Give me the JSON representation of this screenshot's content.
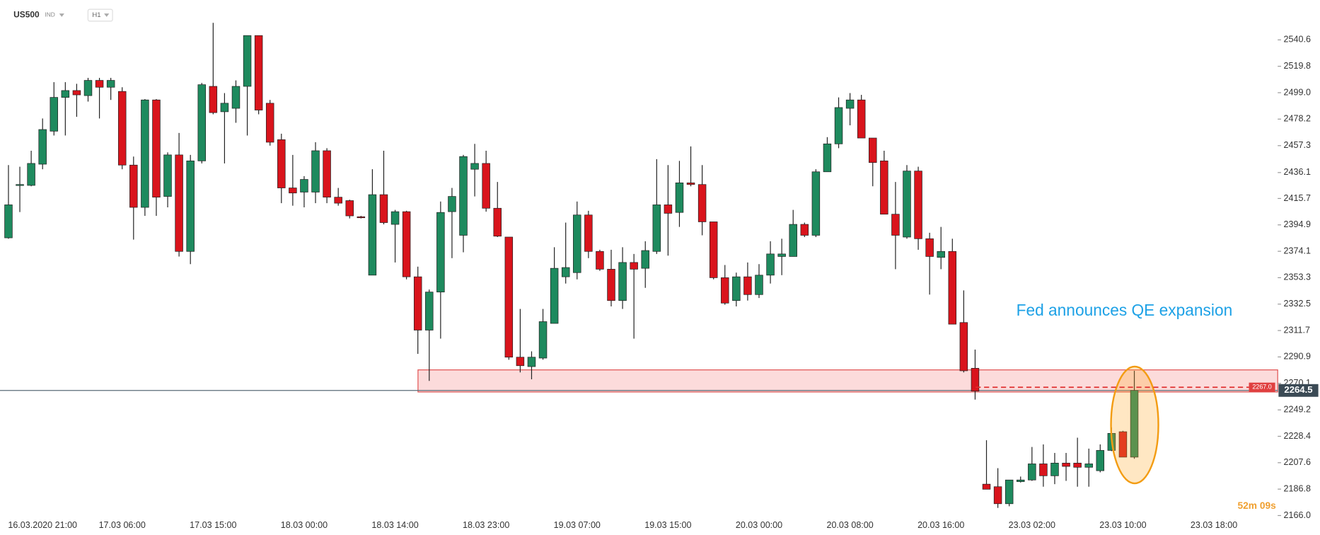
{
  "chart_data": {
    "type": "candlestick",
    "symbol": "US500",
    "market": "IND",
    "timeframe": "H1",
    "annotation": "Fed announces QE expansion",
    "countdown": "52m 09s",
    "up_color": "#1e8a5e",
    "down_color": "#d9141c",
    "categories": [
      null,
      null,
      null,
      "16.03.2020 21:00",
      null,
      null,
      null,
      null,
      null,
      null,
      "17.03 06:00",
      null,
      null,
      null,
      null,
      null,
      null,
      null,
      "17.03 15:00",
      null,
      null,
      null,
      null,
      null,
      null,
      null,
      "18.03 00:00",
      null,
      null,
      null,
      null,
      null,
      null,
      null,
      "18.03 14:00",
      null,
      null,
      null,
      null,
      null,
      null,
      null,
      "18.03 23:00",
      null,
      null,
      null,
      null,
      null,
      null,
      null,
      "19.03 07:00",
      null,
      null,
      null,
      null,
      null,
      null,
      null,
      "19.03 15:00",
      null,
      null,
      null,
      null,
      null,
      null,
      null,
      "20.03 00:00",
      null,
      null,
      null,
      null,
      null,
      null,
      null,
      "20.03 08:00",
      null,
      null,
      null,
      null,
      null,
      null,
      null,
      "20.03 16:00",
      null,
      null,
      null,
      null,
      null,
      null,
      null,
      "23.03 02:00",
      null,
      null,
      null,
      null,
      null,
      null,
      null,
      "23.03 10:00",
      null,
      null,
      null,
      null,
      null,
      null,
      null,
      "23.03 18:00"
    ],
    "open": [
      2384.7,
      2426.0,
      2426.0,
      2442.7,
      2468.7,
      2495.3,
      2500.7,
      2496.7,
      2508.7,
      2503.3,
      2500.0,
      2442.0,
      2408.7,
      2493.3,
      2417.3,
      2450.0,
      2374.0,
      2445.3,
      2504.0,
      2484.0,
      2486.7,
      2504.0,
      2544.0,
      2490.7,
      2462.0,
      2424.0,
      2420.7,
      2420.7,
      2453.3,
      2416.7,
      2414.0,
      2401.3,
      2355.3,
      2418.7,
      2395.3,
      2405.3,
      2354.0,
      2312.0,
      2342.0,
      2405.3,
      2386.7,
      2438.7,
      2443.3,
      2408.0,
      2385.3,
      2290.7,
      2283.3,
      2290.0,
      2317.3,
      2354.0,
      2357.3,
      2402.7,
      2374.0,
      2360.0,
      2335.3,
      2365.3,
      2360.7,
      2374.0,
      2410.7,
      2404.7,
      2428.0,
      2426.7,
      2397.3,
      2353.3,
      2335.3,
      2354.0,
      2340.0,
      2355.3,
      2370.0,
      2370.0,
      2395.3,
      2386.7,
      2436.7,
      2458.7,
      2486.7,
      2493.3,
      2463.3,
      2445.3,
      2403.3,
      2385.3,
      2437.3,
      2384.0,
      2369.3,
      2374.0,
      2318.0,
      2282.0,
      2190.7,
      2188.7,
      2175.3,
      2192.7,
      2194.0,
      2206.7,
      2197.3,
      2207.3,
      2207.3,
      2204.0,
      2201.3,
      2217.3,
      2232.0,
      2212.0,
      null,
      null,
      null,
      null,
      null,
      null,
      null
    ],
    "high": [
      2442.0,
      2440.7,
      2453.3,
      2478.7,
      2507.3,
      2507.3,
      2506.0,
      2510.7,
      2510.7,
      2510.7,
      2503.3,
      2448.7,
      2494.0,
      2494.0,
      2452.0,
      2467.3,
      2450.0,
      2506.7,
      2554.0,
      2498.7,
      2508.7,
      2544.0,
      2544.0,
      2493.3,
      2466.7,
      2450.0,
      2433.3,
      2460.0,
      2455.3,
      2424.0,
      2414.7,
      2402.0,
      2438.7,
      2453.3,
      2406.7,
      2406.0,
      2362.0,
      2344.0,
      2413.3,
      2424.0,
      2450.0,
      2458.7,
      2453.3,
      2428.7,
      2385.3,
      2328.7,
      2295.3,
      2328.7,
      2377.3,
      2396.7,
      2413.3,
      2406.0,
      2375.3,
      2375.3,
      2377.3,
      2372.0,
      2382.0,
      2446.7,
      2442.0,
      2445.3,
      2456.7,
      2442.0,
      2397.3,
      2363.3,
      2357.3,
      2365.3,
      2364.0,
      2382.0,
      2384.0,
      2406.7,
      2396.7,
      2438.7,
      2464.0,
      2495.3,
      2498.7,
      2497.3,
      2463.3,
      2453.3,
      2428.7,
      2442.0,
      2440.7,
      2388.7,
      2393.3,
      2384.0,
      2343.3,
      2296.7,
      2225.3,
      2203.3,
      2194.0,
      2196.7,
      2220.0,
      2222.0,
      2215.3,
      2215.3,
      2227.3,
      2218.7,
      2222.0,
      2235.3,
      2232.7,
      2280.0,
      null,
      null,
      null,
      null,
      null,
      null,
      null
    ],
    "low": [
      2384.0,
      2405.0,
      2425.3,
      2438.7,
      2465.3,
      2465.3,
      2480.0,
      2492.0,
      2478.7,
      2493.3,
      2438.7,
      2383.3,
      2402.0,
      2402.0,
      2408.7,
      2370.0,
      2364.0,
      2443.3,
      2482.0,
      2443.3,
      2475.3,
      2465.3,
      2482.0,
      2457.3,
      2412.0,
      2410.0,
      2408.7,
      2412.0,
      2412.0,
      2410.0,
      2400.0,
      2400.0,
      2355.3,
      2395.3,
      2365.3,
      2352.0,
      2293.3,
      2272.0,
      2305.3,
      2368.7,
      2373.3,
      2417.3,
      2405.3,
      2385.3,
      2288.7,
      2278.7,
      2273.3,
      2288.7,
      2317.3,
      2348.7,
      2352.0,
      2368.7,
      2358.7,
      2330.7,
      2328.7,
      2305.3,
      2345.3,
      2372.0,
      2370.7,
      2393.3,
      2425.3,
      2386.7,
      2352.0,
      2332.0,
      2330.7,
      2335.3,
      2337.3,
      2348.7,
      2355.3,
      2370.0,
      2385.3,
      2385.3,
      2436.7,
      2455.3,
      2473.3,
      2463.3,
      2425.3,
      2403.3,
      2360.0,
      2384.0,
      2375.3,
      2340.0,
      2360.0,
      2316.7,
      2278.7,
      2257.3,
      2186.7,
      2172.0,
      2173.3,
      2192.0,
      2193.3,
      2188.7,
      2190.7,
      2193.3,
      2188.7,
      2188.7,
      2200.0,
      2216.7,
      2212.0,
      2210.7,
      null,
      null,
      null,
      null,
      null,
      null,
      null
    ],
    "close": [
      2410.7,
      2426.7,
      2443.3,
      2470.0,
      2495.3,
      2500.7,
      2497.3,
      2508.7,
      2503.3,
      2508.7,
      2442.0,
      2408.7,
      2493.3,
      2416.7,
      2450.0,
      2374.0,
      2445.3,
      2505.3,
      2483.3,
      2490.7,
      2504.0,
      2544.0,
      2485.3,
      2460.0,
      2424.0,
      2420.0,
      2430.7,
      2453.3,
      2416.7,
      2412.0,
      2402.0,
      2400.7,
      2418.7,
      2396.7,
      2405.3,
      2354.0,
      2312.0,
      2342.0,
      2404.7,
      2417.3,
      2448.7,
      2443.3,
      2408.0,
      2386.0,
      2290.7,
      2284.0,
      2290.7,
      2318.7,
      2360.7,
      2361.3,
      2402.7,
      2374.0,
      2360.0,
      2335.3,
      2365.3,
      2360.0,
      2374.7,
      2410.7,
      2404.0,
      2428.0,
      2426.7,
      2397.3,
      2353.3,
      2333.3,
      2354.0,
      2340.0,
      2355.3,
      2372.0,
      2372.0,
      2395.3,
      2386.7,
      2436.7,
      2458.7,
      2487.3,
      2493.3,
      2463.3,
      2444.0,
      2403.3,
      2386.7,
      2437.3,
      2384.0,
      2370.0,
      2374.0,
      2316.7,
      2280.0,
      2264.0,
      2186.7,
      2175.3,
      2194.0,
      2194.0,
      2206.7,
      2197.3,
      2207.3,
      2204.7,
      2204.0,
      2206.7,
      2217.3,
      2230.7,
      2212.0,
      2264.5,
      null,
      null,
      null,
      null,
      null,
      null,
      null
    ],
    "ylim": [
      2164,
      2572
    ],
    "yticks": [
      {
        "value": 2166,
        "label": "2166.0"
      },
      2186.8,
      2207.6,
      2228.4,
      2249.2,
      2270.1,
      2290.9,
      2311.7,
      2332.5,
      2353.3,
      2374.1,
      2394.9,
      2415.7,
      2436.1,
      2457.3,
      2478.2,
      {
        "value": 2499,
        "label": "2499.0"
      },
      2519.8,
      2540.6
    ],
    "zone": {
      "low": 2263.3,
      "high": 2280.7,
      "color": "#e05050"
    },
    "last_price": 2264.5,
    "order_price": {
      "value": 2267,
      "label": "2267.0"
    }
  }
}
